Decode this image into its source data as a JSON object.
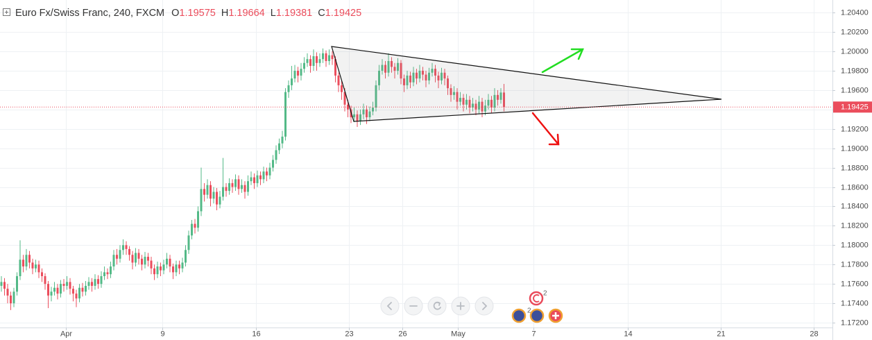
{
  "chart_data": {
    "type": "candlestick",
    "title": "Euro Fx/Swiss Franc, 240, FXCM",
    "ohlc_labels": [
      "O",
      "H",
      "L",
      "C"
    ],
    "up_color": "#53b987",
    "down_color": "#eb4d5c",
    "grid": true,
    "xlim": [
      -0.444,
      266.222
    ],
    "xticks": [
      {
        "value": 20.7,
        "label": "Apr"
      },
      {
        "value": 51.6,
        "label": "9"
      },
      {
        "value": 81.6,
        "label": "16"
      },
      {
        "value": 111.3,
        "label": "23"
      },
      {
        "value": 128.4,
        "label": "26"
      },
      {
        "value": 146.2,
        "label": "May"
      },
      {
        "value": 170.4,
        "label": "7"
      },
      {
        "value": 200.7,
        "label": "14"
      },
      {
        "value": 230.4,
        "label": "21"
      },
      {
        "value": 260.2,
        "label": "28"
      }
    ],
    "ylim": [
      1.1715,
      1.2053
    ],
    "yticks": [
      {
        "value": 1.172,
        "label": "1.17200"
      },
      {
        "value": 1.174,
        "label": "1.17400"
      },
      {
        "value": 1.176,
        "label": "1.17600"
      },
      {
        "value": 1.178,
        "label": "1.17800"
      },
      {
        "value": 1.18,
        "label": "1.18000"
      },
      {
        "value": 1.182,
        "label": "1.18200"
      },
      {
        "value": 1.184,
        "label": "1.18400"
      },
      {
        "value": 1.186,
        "label": "1.18600"
      },
      {
        "value": 1.188,
        "label": "1.18800"
      },
      {
        "value": 1.19,
        "label": "1.19000"
      },
      {
        "value": 1.192,
        "label": "1.19200"
      },
      {
        "value": 1.194,
        "label": "1.19400"
      },
      {
        "value": 1.196,
        "label": "1.19600"
      },
      {
        "value": 1.198,
        "label": "1.19800"
      },
      {
        "value": 1.2,
        "label": "1.20000"
      },
      {
        "value": 1.202,
        "label": "1.20200"
      },
      {
        "value": 1.204,
        "label": "1.20400"
      }
    ],
    "event_counts": [
      2,
      2
    ],
    "candles": [
      [
        1.1758,
        1.1768,
        1.1752,
        1.1762
      ],
      [
        1.1762,
        1.1766,
        1.1748,
        1.1755
      ],
      [
        1.1755,
        1.176,
        1.174,
        1.1748
      ],
      [
        1.1748,
        1.1752,
        1.1733,
        1.174
      ],
      [
        1.174,
        1.1756,
        1.1736,
        1.1752
      ],
      [
        1.1752,
        1.1772,
        1.1748,
        1.1768
      ],
      [
        1.1768,
        1.1805,
        1.1764,
        1.1785
      ],
      [
        1.1785,
        1.179,
        1.1772,
        1.1778
      ],
      [
        1.1778,
        1.1796,
        1.1774,
        1.179
      ],
      [
        1.179,
        1.1794,
        1.1776,
        1.1782
      ],
      [
        1.1782,
        1.1786,
        1.177,
        1.1776
      ],
      [
        1.1776,
        1.1785,
        1.1772,
        1.178
      ],
      [
        1.178,
        1.1784,
        1.1766,
        1.1772
      ],
      [
        1.1772,
        1.1776,
        1.1762,
        1.1768
      ],
      [
        1.1768,
        1.1771,
        1.1754,
        1.176
      ],
      [
        1.176,
        1.1763,
        1.1735,
        1.1748
      ],
      [
        1.1748,
        1.1757,
        1.1742,
        1.1752
      ],
      [
        1.1752,
        1.1762,
        1.1748,
        1.1756
      ],
      [
        1.1756,
        1.176,
        1.1744,
        1.175
      ],
      [
        1.175,
        1.1764,
        1.1746,
        1.176
      ],
      [
        1.176,
        1.1765,
        1.1752,
        1.1758
      ],
      [
        1.1758,
        1.1768,
        1.1754,
        1.1762
      ],
      [
        1.1762,
        1.1766,
        1.1749,
        1.1755
      ],
      [
        1.1755,
        1.1758,
        1.1742,
        1.175
      ],
      [
        1.175,
        1.1754,
        1.1736,
        1.1745
      ],
      [
        1.1745,
        1.176,
        1.1741,
        1.1756
      ],
      [
        1.1756,
        1.1761,
        1.1747,
        1.1752
      ],
      [
        1.1752,
        1.1763,
        1.1748,
        1.1758
      ],
      [
        1.1758,
        1.1767,
        1.1754,
        1.1762
      ],
      [
        1.1762,
        1.1766,
        1.1752,
        1.1758
      ],
      [
        1.1758,
        1.177,
        1.1754,
        1.1765
      ],
      [
        1.1765,
        1.1769,
        1.1755,
        1.176
      ],
      [
        1.176,
        1.1773,
        1.1756,
        1.1768
      ],
      [
        1.1768,
        1.1778,
        1.1764,
        1.1772
      ],
      [
        1.1772,
        1.1776,
        1.1765,
        1.177
      ],
      [
        1.177,
        1.1783,
        1.1766,
        1.1778
      ],
      [
        1.1778,
        1.1795,
        1.1774,
        1.179
      ],
      [
        1.179,
        1.1796,
        1.178,
        1.1786
      ],
      [
        1.1786,
        1.18,
        1.1782,
        1.1795
      ],
      [
        1.1795,
        1.1806,
        1.179,
        1.18
      ],
      [
        1.18,
        1.1804,
        1.179,
        1.1796
      ],
      [
        1.1796,
        1.1799,
        1.1784,
        1.179
      ],
      [
        1.179,
        1.1794,
        1.1775,
        1.1782
      ],
      [
        1.1782,
        1.1797,
        1.1778,
        1.1792
      ],
      [
        1.1792,
        1.1796,
        1.178,
        1.1786
      ],
      [
        1.1786,
        1.179,
        1.1774,
        1.178
      ],
      [
        1.178,
        1.1793,
        1.1776,
        1.1788
      ],
      [
        1.1788,
        1.1792,
        1.1778,
        1.1784
      ],
      [
        1.1784,
        1.1788,
        1.177,
        1.1776
      ],
      [
        1.1776,
        1.178,
        1.1764,
        1.177
      ],
      [
        1.177,
        1.1783,
        1.1766,
        1.1778
      ],
      [
        1.1778,
        1.1782,
        1.1768,
        1.1774
      ],
      [
        1.1774,
        1.1785,
        1.177,
        1.178
      ],
      [
        1.178,
        1.1792,
        1.1776,
        1.1786
      ],
      [
        1.1786,
        1.179,
        1.1772,
        1.1778
      ],
      [
        1.1778,
        1.1781,
        1.1765,
        1.1772
      ],
      [
        1.1772,
        1.1784,
        1.1768,
        1.178
      ],
      [
        1.178,
        1.1784,
        1.177,
        1.1776
      ],
      [
        1.1776,
        1.1787,
        1.1772,
        1.1782
      ],
      [
        1.1782,
        1.18,
        1.1778,
        1.1795
      ],
      [
        1.1795,
        1.1815,
        1.1791,
        1.181
      ],
      [
        1.181,
        1.1826,
        1.1806,
        1.1822
      ],
      [
        1.1822,
        1.1827,
        1.1812,
        1.1818
      ],
      [
        1.1818,
        1.184,
        1.1814,
        1.1835
      ],
      [
        1.1835,
        1.188,
        1.183,
        1.1858
      ],
      [
        1.1858,
        1.1864,
        1.1845,
        1.1852
      ],
      [
        1.1852,
        1.1868,
        1.1848,
        1.1862
      ],
      [
        1.1862,
        1.1866,
        1.184,
        1.1848
      ],
      [
        1.1848,
        1.186,
        1.1843,
        1.1855
      ],
      [
        1.1855,
        1.1859,
        1.1836,
        1.1842
      ],
      [
        1.1842,
        1.1856,
        1.1838,
        1.185
      ],
      [
        1.185,
        1.189,
        1.1846,
        1.186
      ],
      [
        1.186,
        1.1864,
        1.185,
        1.1856
      ],
      [
        1.1856,
        1.1869,
        1.1852,
        1.1864
      ],
      [
        1.1864,
        1.1868,
        1.1854,
        1.186
      ],
      [
        1.186,
        1.1873,
        1.1856,
        1.1868
      ],
      [
        1.1868,
        1.1872,
        1.1852,
        1.1858
      ],
      [
        1.1858,
        1.1868,
        1.1854,
        1.1862
      ],
      [
        1.1862,
        1.1866,
        1.1848,
        1.1855
      ],
      [
        1.1855,
        1.1872,
        1.1851,
        1.1866
      ],
      [
        1.1866,
        1.1876,
        1.1862,
        1.187
      ],
      [
        1.187,
        1.1874,
        1.1858,
        1.1864
      ],
      [
        1.1864,
        1.1877,
        1.186,
        1.1872
      ],
      [
        1.1872,
        1.1876,
        1.1862,
        1.1868
      ],
      [
        1.1868,
        1.1881,
        1.1864,
        1.1876
      ],
      [
        1.1876,
        1.188,
        1.1866,
        1.1872
      ],
      [
        1.1872,
        1.1885,
        1.1868,
        1.188
      ],
      [
        1.188,
        1.1893,
        1.1876,
        1.1888
      ],
      [
        1.1888,
        1.1903,
        1.1884,
        1.1898
      ],
      [
        1.1898,
        1.191,
        1.1894,
        1.1905
      ],
      [
        1.1905,
        1.1918,
        1.19,
        1.1912
      ],
      [
        1.1912,
        1.1962,
        1.1908,
        1.1958
      ],
      [
        1.1958,
        1.197,
        1.1952,
        1.1965
      ],
      [
        1.1965,
        1.1985,
        1.196,
        1.1972
      ],
      [
        1.1972,
        1.1986,
        1.1968,
        1.198
      ],
      [
        1.198,
        1.1984,
        1.1968,
        1.1975
      ],
      [
        1.1975,
        1.1988,
        1.197,
        1.1982
      ],
      [
        1.1982,
        1.1994,
        1.1978,
        1.1988
      ],
      [
        1.1988,
        1.1998,
        1.1984,
        1.1992
      ],
      [
        1.1992,
        1.1996,
        1.1978,
        1.1985
      ],
      [
        1.1985,
        1.2002,
        1.198,
        1.1995
      ],
      [
        1.1995,
        1.1999,
        1.198,
        1.1988
      ],
      [
        1.1988,
        1.1998,
        1.1984,
        1.1992
      ],
      [
        1.1992,
        1.2003,
        1.1988,
        1.1998
      ],
      [
        1.1998,
        1.2001,
        1.1984,
        1.199
      ],
      [
        1.199,
        1.2002,
        1.1986,
        1.1996
      ],
      [
        1.1996,
        1.2,
        1.1986,
        1.1992
      ],
      [
        1.1992,
        1.1995,
        1.1968,
        1.1975
      ],
      [
        1.1975,
        1.1978,
        1.1958,
        1.1965
      ],
      [
        1.1965,
        1.197,
        1.195,
        1.1958
      ],
      [
        1.1958,
        1.1962,
        1.1938,
        1.1945
      ],
      [
        1.1945,
        1.195,
        1.1932,
        1.194
      ],
      [
        1.194,
        1.1944,
        1.1926,
        1.1932
      ],
      [
        1.1932,
        1.1942,
        1.1927,
        1.1935
      ],
      [
        1.1935,
        1.1939,
        1.1922,
        1.1928
      ],
      [
        1.1928,
        1.194,
        1.1924,
        1.1935
      ],
      [
        1.1935,
        1.1946,
        1.193,
        1.194
      ],
      [
        1.194,
        1.1944,
        1.1925,
        1.1932
      ],
      [
        1.1932,
        1.1943,
        1.1928,
        1.1938
      ],
      [
        1.1938,
        1.1948,
        1.1934,
        1.1942
      ],
      [
        1.1942,
        1.197,
        1.1938,
        1.1965
      ],
      [
        1.1965,
        1.1986,
        1.196,
        1.198
      ],
      [
        1.198,
        1.1992,
        1.1976,
        1.1986
      ],
      [
        1.1986,
        1.199,
        1.1972,
        1.1978
      ],
      [
        1.1978,
        1.1998,
        1.1974,
        1.199
      ],
      [
        1.199,
        1.1994,
        1.1978,
        1.1984
      ],
      [
        1.1984,
        1.1988,
        1.1972,
        1.198
      ],
      [
        1.198,
        1.1993,
        1.1976,
        1.1988
      ],
      [
        1.1988,
        1.1991,
        1.1966,
        1.1972
      ],
      [
        1.1972,
        1.1976,
        1.1958,
        1.1965
      ],
      [
        1.1965,
        1.198,
        1.1961,
        1.1975
      ],
      [
        1.1975,
        1.1979,
        1.1962,
        1.1968
      ],
      [
        1.1968,
        1.1984,
        1.1964,
        1.1978
      ],
      [
        1.1978,
        1.1982,
        1.1966,
        1.1972
      ],
      [
        1.1972,
        1.1986,
        1.1968,
        1.198
      ],
      [
        1.198,
        1.1984,
        1.197,
        1.1976
      ],
      [
        1.1976,
        1.198,
        1.1963,
        1.197
      ],
      [
        1.197,
        1.1983,
        1.1966,
        1.1978
      ],
      [
        1.1978,
        1.1988,
        1.1974,
        1.1982
      ],
      [
        1.1982,
        1.1986,
        1.1968,
        1.1975
      ],
      [
        1.1975,
        1.1979,
        1.1962,
        1.197
      ],
      [
        1.197,
        1.1983,
        1.1966,
        1.1978
      ],
      [
        1.1978,
        1.1982,
        1.1965,
        1.1972
      ],
      [
        1.1972,
        1.1975,
        1.1955,
        1.1962
      ],
      [
        1.1962,
        1.1966,
        1.1948,
        1.1955
      ],
      [
        1.1955,
        1.1964,
        1.195,
        1.1958
      ],
      [
        1.1958,
        1.1962,
        1.194,
        1.1948
      ],
      [
        1.1948,
        1.1958,
        1.1944,
        1.1952
      ],
      [
        1.1952,
        1.1956,
        1.1938,
        1.1945
      ],
      [
        1.1945,
        1.1956,
        1.194,
        1.195
      ],
      [
        1.195,
        1.1954,
        1.1936,
        1.1942
      ],
      [
        1.1942,
        1.1952,
        1.1938,
        1.1946
      ],
      [
        1.1946,
        1.195,
        1.1934,
        1.194
      ],
      [
        1.194,
        1.1954,
        1.1936,
        1.1948
      ],
      [
        1.1948,
        1.1952,
        1.1932,
        1.1938
      ],
      [
        1.1938,
        1.195,
        1.1934,
        1.1944
      ],
      [
        1.1944,
        1.1956,
        1.194,
        1.195
      ],
      [
        1.195,
        1.1954,
        1.1936,
        1.1942
      ],
      [
        1.1942,
        1.1962,
        1.1938,
        1.1955
      ],
      [
        1.1955,
        1.196,
        1.1944,
        1.195
      ],
      [
        1.195,
        1.1962,
        1.1946,
        1.19575
      ],
      [
        1.19575,
        1.19664,
        1.19381,
        1.19425
      ]
    ]
  }
}
